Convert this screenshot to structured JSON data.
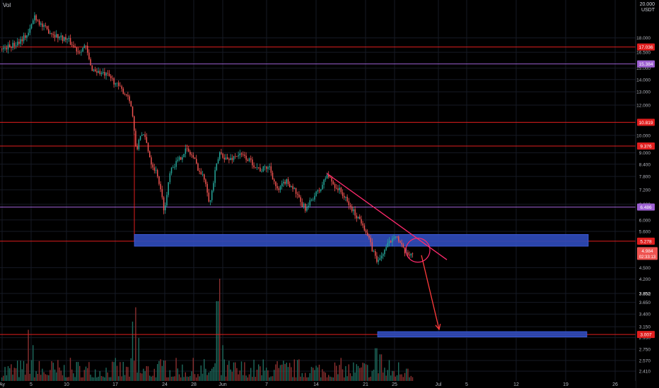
{
  "header": {
    "indicator_label": "Vol",
    "currency": "USDT",
    "top_tick": "20.000"
  },
  "colors": {
    "up": "#26a69a",
    "down": "#ef5350",
    "level": "#e01e1e",
    "violet_level": "#9c5fd1",
    "zone": "#2f4bb8",
    "trend": "#ff2a6d",
    "grid": "#161a25",
    "axis_text": "#b2b5be",
    "bg": "#000000"
  },
  "chart_data": {
    "type": "candlestick",
    "y_scale": "log",
    "ylim": [
      2.35,
      21.5
    ],
    "x_tick_labels": [
      {
        "label": "Ay",
        "x": 3
      },
      {
        "label": "5",
        "x": 44
      },
      {
        "label": "10",
        "x": 94
      },
      {
        "label": "17",
        "x": 163
      },
      {
        "label": "24",
        "x": 233
      },
      {
        "label": "28",
        "x": 274
      },
      {
        "label": "Jun",
        "x": 315
      },
      {
        "label": "7",
        "x": 377
      },
      {
        "label": "14",
        "x": 447
      },
      {
        "label": "21",
        "x": 517
      },
      {
        "label": "25",
        "x": 558
      },
      {
        "label": "Jul",
        "x": 620
      },
      {
        "label": "5",
        "x": 660
      },
      {
        "label": "12",
        "x": 730
      },
      {
        "label": "19",
        "x": 800
      },
      {
        "label": "26",
        "x": 870
      }
    ],
    "y_tick_labels": [
      "18.000",
      "16.500",
      "15.000",
      "14.000",
      "13.000",
      "12.000",
      "10.000",
      "9.000",
      "8.400",
      "7.800",
      "7.200",
      "6.600",
      "6.000",
      "5.600",
      "4.500",
      "4.200",
      "3.850",
      "3.650",
      "3.400",
      "3.150",
      "2.950",
      "2.750",
      "2.570",
      "2.410"
    ],
    "horizontal_levels": [
      {
        "value": 17.036,
        "label": "17.036",
        "color": "red"
      },
      {
        "value": 15.384,
        "label": "15.384",
        "color": "violet"
      },
      {
        "value": 10.819,
        "label": "10.819",
        "color": "red"
      },
      {
        "value": 9.376,
        "label": "9.376",
        "color": "red"
      },
      {
        "value": 6.486,
        "label": "6.486",
        "color": "violet"
      },
      {
        "value": 5.278,
        "label": "5.278",
        "color": "red"
      },
      {
        "value": 3.007,
        "label": "3.007",
        "color": "red"
      }
    ],
    "current_price": {
      "value": 4.984,
      "label": "4.984",
      "countdown": "02:33:13"
    },
    "minor_tick": "3.852",
    "zones": [
      {
        "from_x": 190,
        "to_x": 832,
        "low": 5.12,
        "high": 5.5
      },
      {
        "from_x": 534,
        "to_x": 830,
        "low": 2.96,
        "high": 3.06
      }
    ],
    "trendline": {
      "x1": 462,
      "y1": 7.95,
      "x2": 632,
      "y2": 4.72
    },
    "projection_arrow": {
      "x1": 596,
      "y1": 4.85,
      "x2": 621,
      "y2": 3.1
    },
    "circle": {
      "x": 591,
      "y": 5.0,
      "r": 17
    },
    "candle_x_start": 2,
    "candle_x_end": 584,
    "price_path": [
      [
        0,
        16.8
      ],
      [
        20,
        17.3
      ],
      [
        40,
        18.5
      ],
      [
        48,
        20.6
      ],
      [
        60,
        19.2
      ],
      [
        80,
        18.2
      ],
      [
        95,
        17.8
      ],
      [
        110,
        16.6
      ],
      [
        120,
        17.2
      ],
      [
        128,
        15.0
      ],
      [
        140,
        14.6
      ],
      [
        155,
        14.2
      ],
      [
        170,
        13.2
      ],
      [
        182,
        12.6
      ],
      [
        187,
        11.2
      ],
      [
        192,
        8.9
      ],
      [
        197,
        10.1
      ],
      [
        205,
        9.8
      ],
      [
        213,
        8.5
      ],
      [
        222,
        7.9
      ],
      [
        232,
        6.3
      ],
      [
        240,
        8.2
      ],
      [
        252,
        8.6
      ],
      [
        262,
        9.2
      ],
      [
        272,
        8.8
      ],
      [
        282,
        8.0
      ],
      [
        290,
        7.6
      ],
      [
        296,
        6.6
      ],
      [
        304,
        8.1
      ],
      [
        310,
        9.0
      ],
      [
        322,
        8.6
      ],
      [
        335,
        8.9
      ],
      [
        345,
        8.8
      ],
      [
        355,
        8.5
      ],
      [
        368,
        8.1
      ],
      [
        380,
        8.3
      ],
      [
        392,
        7.1
      ],
      [
        403,
        7.6
      ],
      [
        414,
        7.3
      ],
      [
        425,
        6.6
      ],
      [
        433,
        6.4
      ],
      [
        442,
        6.9
      ],
      [
        452,
        7.2
      ],
      [
        462,
        7.9
      ],
      [
        472,
        7.4
      ],
      [
        482,
        7.1
      ],
      [
        492,
        6.6
      ],
      [
        502,
        6.2
      ],
      [
        512,
        5.9
      ],
      [
        520,
        5.4
      ],
      [
        526,
        5.0
      ],
      [
        534,
        4.65
      ],
      [
        543,
        5.0
      ],
      [
        552,
        5.3
      ],
      [
        558,
        5.55
      ],
      [
        566,
        5.15
      ],
      [
        574,
        4.85
      ],
      [
        584,
        4.95
      ]
    ],
    "volume_spikes": [
      [
        40,
        0.5
      ],
      [
        46,
        0.35
      ],
      [
        187,
        0.58
      ],
      [
        191,
        0.72
      ],
      [
        195,
        0.42
      ],
      [
        232,
        0.2
      ],
      [
        307,
        0.78
      ],
      [
        310,
        1.0
      ],
      [
        314,
        0.35
      ],
      [
        531,
        0.32
      ],
      [
        538,
        0.26
      ],
      [
        575,
        0.12
      ]
    ]
  }
}
